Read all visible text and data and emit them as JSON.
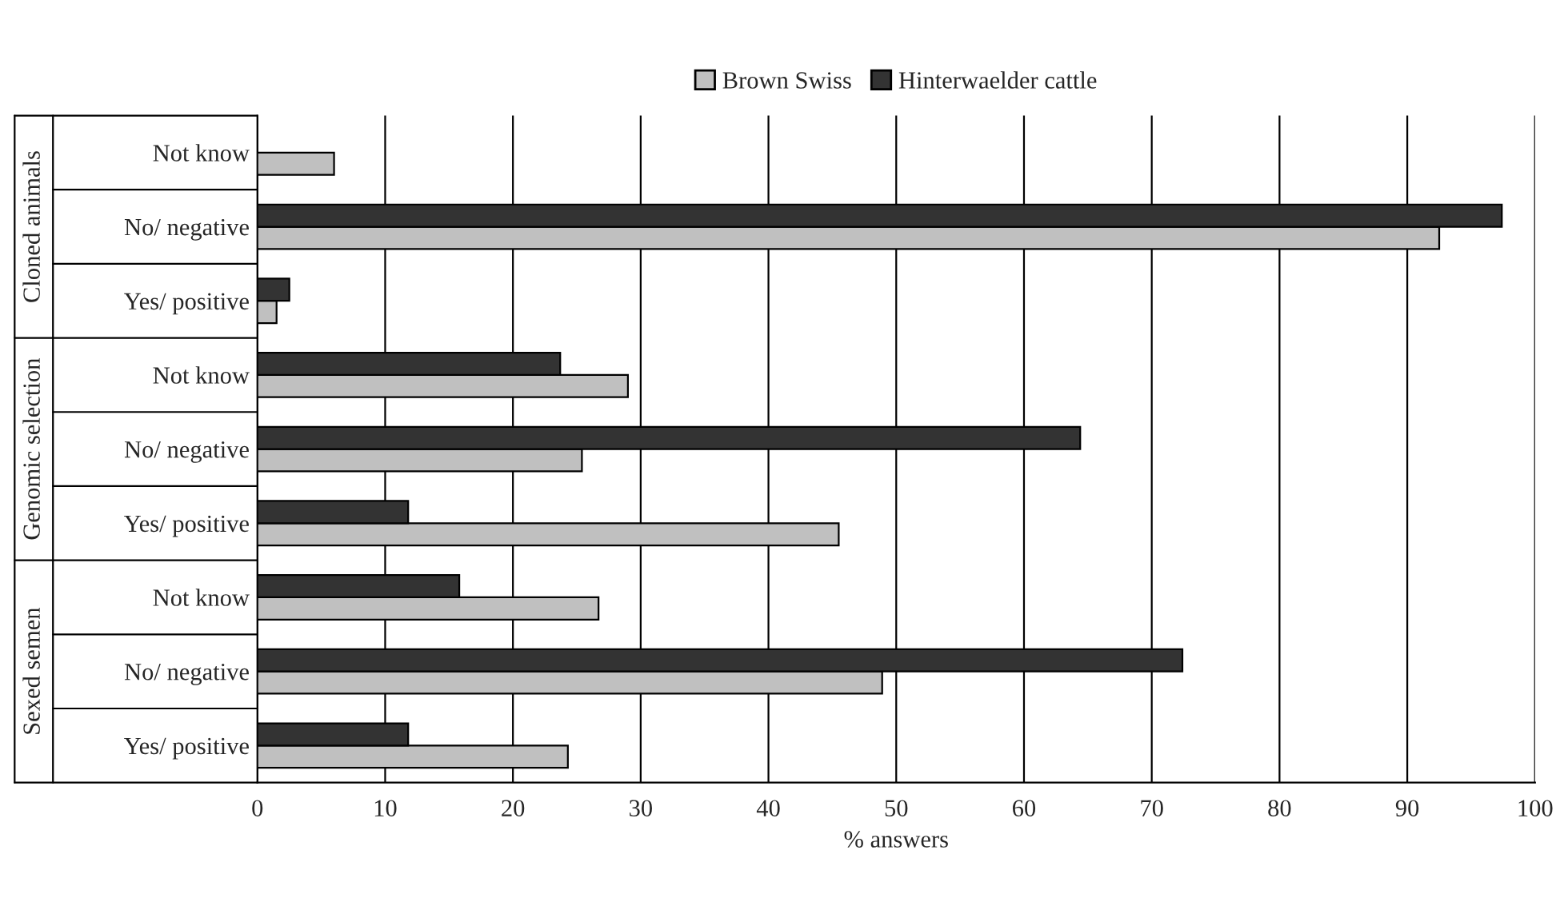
{
  "chart_data": {
    "type": "bar",
    "orientation": "horizontal",
    "xlabel": "% answers",
    "categories": [
      "Not know",
      "No/ negative",
      "Yes/ positive",
      "Not know",
      "No/ negative",
      "Yes/ positive",
      "Not know",
      "No/ negative",
      "Yes/ positive"
    ],
    "series": [
      {
        "name": "Brown Swiss",
        "color": "#c0c0c0",
        "values": [
          6,
          92.5,
          1.5,
          29,
          25.4,
          45.5,
          26.7,
          48.9,
          24.3
        ]
      },
      {
        "name": "Hinterwaelder cattle",
        "color": "#333333",
        "values": [
          null,
          97.4,
          2.5,
          23.7,
          64.4,
          11.8,
          15.8,
          72.4,
          11.8
        ]
      }
    ],
    "annotations": [
      "Cloned animals",
      "Genomic selection",
      "Sexed semen"
    ],
    "xlim": [
      0,
      100
    ],
    "xticks": [
      0,
      10,
      20,
      30,
      40,
      50,
      60,
      70,
      80,
      90,
      100
    ],
    "grid": "x",
    "legend": "top"
  }
}
